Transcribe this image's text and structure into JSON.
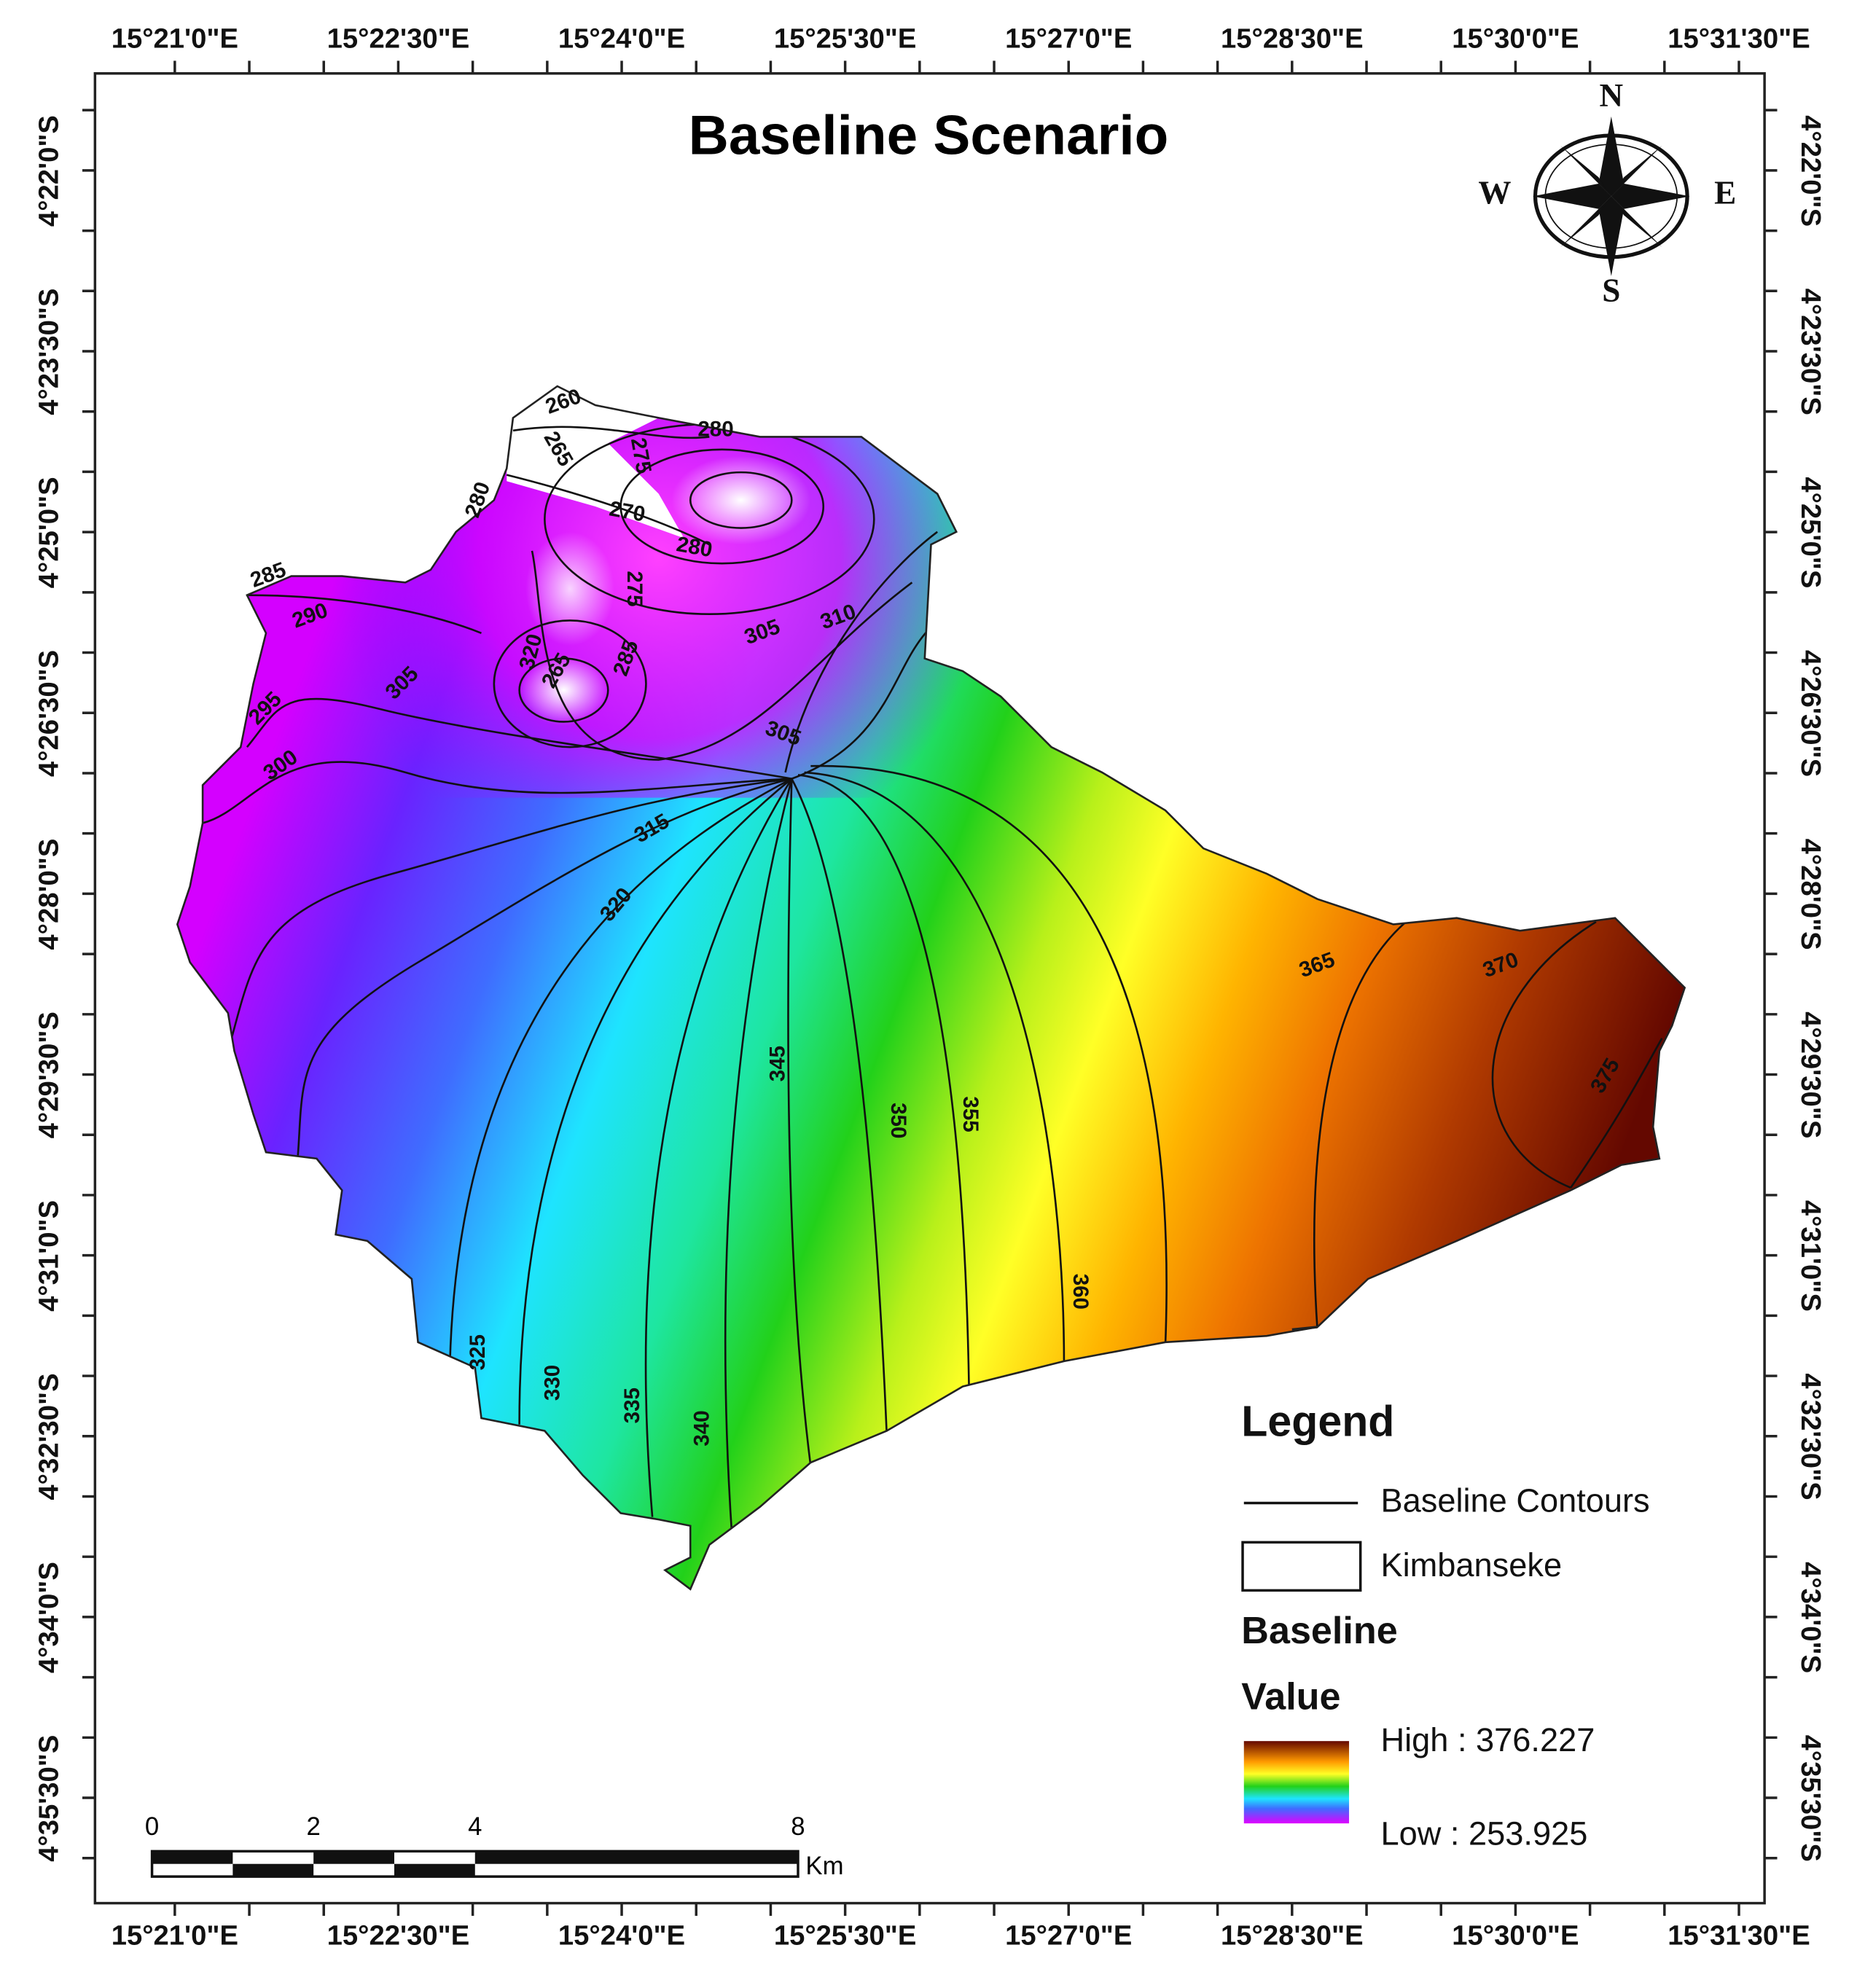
{
  "title": "Baseline Scenario",
  "longitude_labels": [
    "15°21'0\"E",
    "15°22'30\"E",
    "15°24'0\"E",
    "15°25'30\"E",
    "15°27'0\"E",
    "15°28'30\"E",
    "15°30'0\"E",
    "15°31'30\"E"
  ],
  "latitude_labels": [
    "4°22'0\"S",
    "4°23'30\"S",
    "4°25'0\"S",
    "4°26'30\"S",
    "4°28'0\"S",
    "4°29'30\"S",
    "4°31'0\"S",
    "4°32'30\"S",
    "4°34'0\"S",
    "4°35'30\"S"
  ],
  "compass": {
    "n": "N",
    "e": "E",
    "s": "S",
    "w": "W"
  },
  "contour_labels": [
    260,
    265,
    275,
    280,
    280,
    270,
    280,
    285,
    290,
    275,
    305,
    295,
    300,
    320,
    285,
    265,
    305,
    310,
    305,
    315,
    320,
    325,
    330,
    335,
    340,
    345,
    350,
    355,
    360,
    365,
    370,
    375
  ],
  "legend": {
    "title": "Legend",
    "items": [
      "Baseline Contours",
      "Kimbanseke"
    ],
    "ramp_title": [
      "Baseline",
      "Value"
    ],
    "high": "High : 376.227",
    "low": "Low : 253.925"
  },
  "scale_bar": {
    "ticks": [
      0,
      2,
      4,
      8
    ],
    "unit": "Km"
  }
}
